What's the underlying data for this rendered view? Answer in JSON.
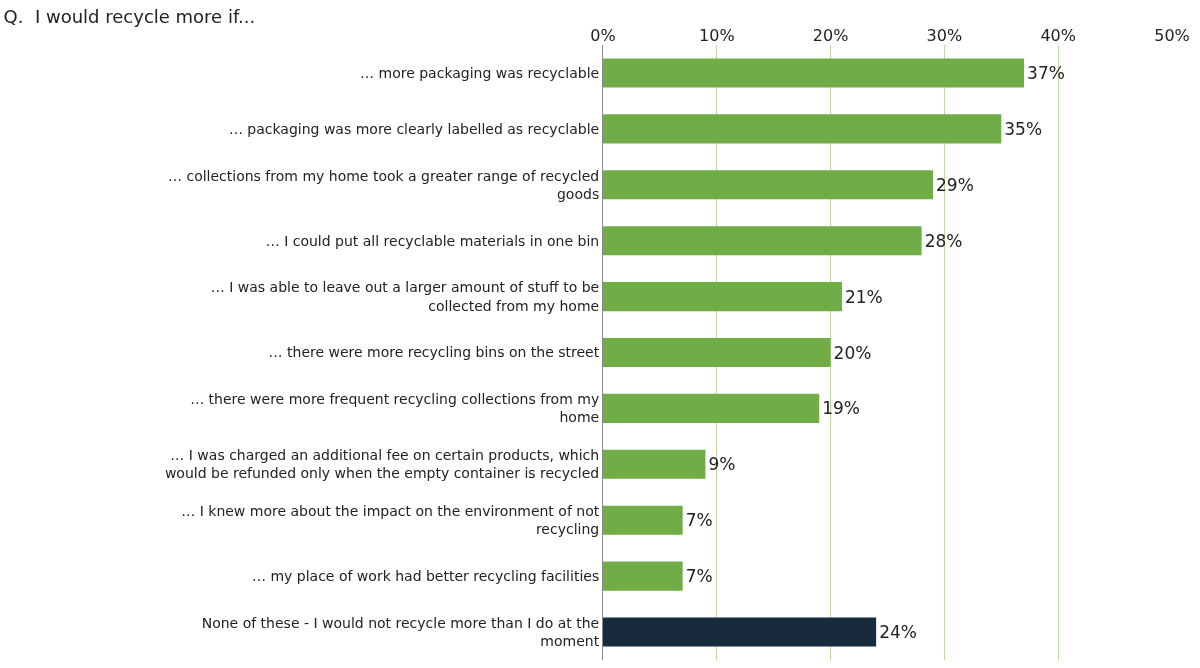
{
  "chart_data": {
    "type": "bar",
    "orientation": "horizontal",
    "title": "Q.  I would recycle more if...",
    "categories": [
      "… more packaging was recyclable",
      "… packaging was more clearly labelled as recyclable",
      "… collections from my home took a greater range of recycled goods",
      "… I could put all recyclable materials in one bin",
      "… I was able to leave out a larger amount of stuff to be collected from my home",
      "… there were more recycling bins on the street",
      "… there were more frequent recycling collections from my home",
      "… I was charged an additional fee on certain products, which would be refunded only when the empty container is recycled",
      "… I knew more about the impact on the environment of not recycling",
      "… my place of work had better recycling facilities",
      "None of these - I would not recycle more than I do at the moment"
    ],
    "values": [
      37,
      35,
      29,
      28,
      21,
      20,
      19,
      9,
      7,
      7,
      24
    ],
    "value_labels": [
      "37%",
      "35%",
      "29%",
      "28%",
      "21%",
      "20%",
      "19%",
      "9%",
      "7%",
      "7%",
      "24%"
    ],
    "colors": [
      "#70ad47",
      "#70ad47",
      "#70ad47",
      "#70ad47",
      "#70ad47",
      "#70ad47",
      "#70ad47",
      "#70ad47",
      "#70ad47",
      "#70ad47",
      "#172b3d"
    ],
    "xlim": [
      0,
      50
    ],
    "xticks": [
      {
        "value": 0,
        "label": "0%"
      },
      {
        "value": 10,
        "label": "10%"
      },
      {
        "value": 20,
        "label": "20%"
      },
      {
        "value": 30,
        "label": "30%"
      },
      {
        "value": 40,
        "label": "40%"
      },
      {
        "value": 50,
        "label": "50%"
      }
    ],
    "grid": "x"
  }
}
